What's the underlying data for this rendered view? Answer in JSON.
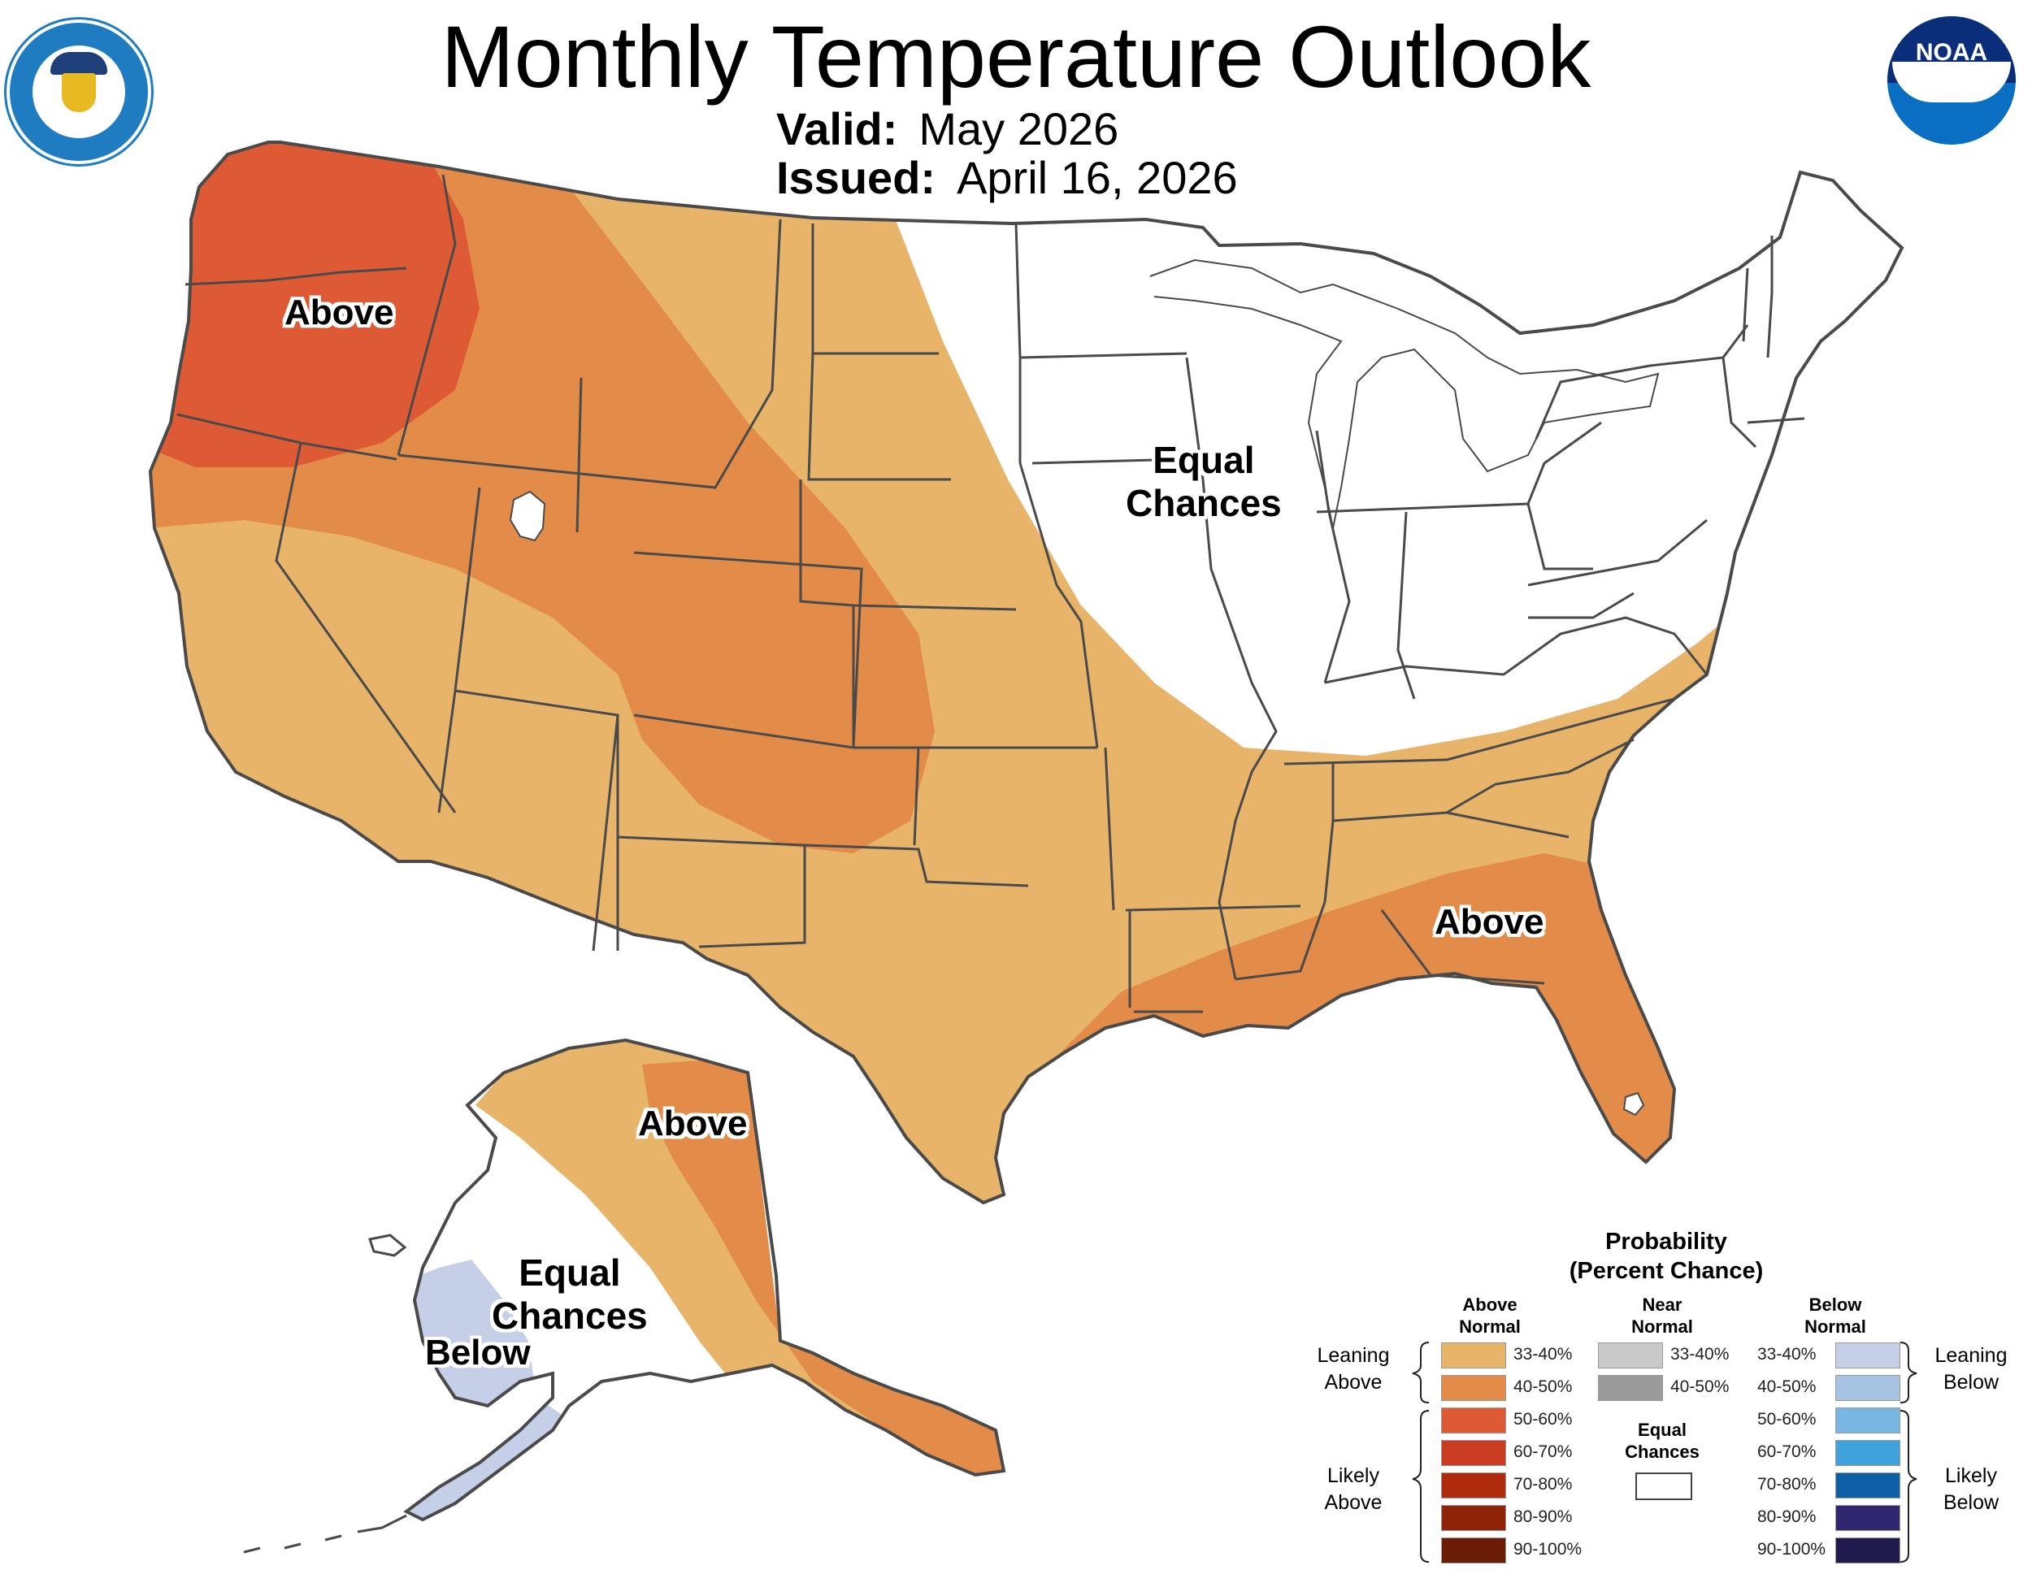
{
  "header": {
    "title": "Monthly Temperature Outlook",
    "valid_label": "Valid:",
    "valid_value": "May 2026",
    "issued_label": "Issued:",
    "issued_value": "April 16, 2026"
  },
  "logos": {
    "left": "department-of-commerce-seal",
    "right_text": "NOAA"
  },
  "regions": {
    "nw_above": "Above",
    "main_equal_chances": "Equal\nChances",
    "se_above": "Above",
    "ak_above": "Above",
    "ak_equal_chances": "Equal\nChances",
    "ak_below": "Below"
  },
  "legend": {
    "title": "Probability\n(Percent Chance)",
    "above_header": "Above\nNormal",
    "near_header": "Near\nNormal",
    "below_header": "Below\nNormal",
    "equal_chances": "Equal\nChances",
    "leaning_above": "Leaning\nAbove",
    "likely_above": "Likely\nAbove",
    "leaning_below": "Leaning\nBelow",
    "likely_below": "Likely\nBelow",
    "above": [
      {
        "label": "33-40%",
        "color": "#e7b46a"
      },
      {
        "label": "40-50%",
        "color": "#e38b49"
      },
      {
        "label": "50-60%",
        "color": "#dd5a34"
      },
      {
        "label": "60-70%",
        "color": "#cb3d21"
      },
      {
        "label": "70-80%",
        "color": "#b02a0d"
      },
      {
        "label": "80-90%",
        "color": "#8e2307"
      },
      {
        "label": "90-100%",
        "color": "#6a1c05"
      }
    ],
    "near": [
      {
        "label": "33-40%",
        "color": "#c9c9c9"
      },
      {
        "label": "40-50%",
        "color": "#9b9b9b"
      }
    ],
    "below": [
      {
        "label": "33-40%",
        "color": "#c5cfe8"
      },
      {
        "label": "40-50%",
        "color": "#a6c3e4"
      },
      {
        "label": "50-60%",
        "color": "#79b6e3"
      },
      {
        "label": "60-70%",
        "color": "#3fa2dd"
      },
      {
        "label": "70-80%",
        "color": "#0e5fa6"
      },
      {
        "label": "80-90%",
        "color": "#312770"
      },
      {
        "label": "90-100%",
        "color": "#201a4f"
      }
    ]
  },
  "colors": {
    "above_33_40": "#e7b46a",
    "above_40_50": "#e38b49",
    "above_50_60": "#dd5a34",
    "below_33_40": "#c5cfe8",
    "border": "#4a4a4a"
  }
}
